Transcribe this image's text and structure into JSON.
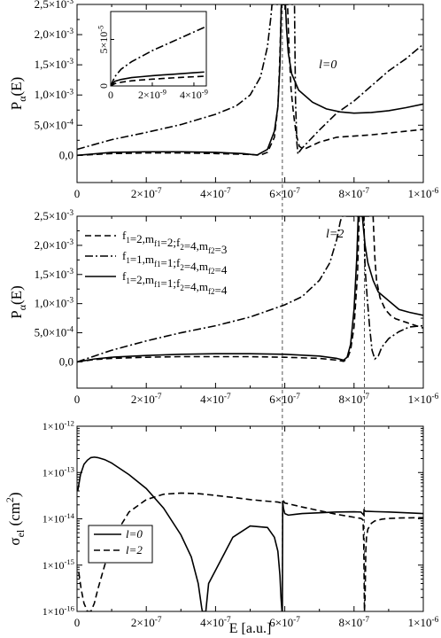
{
  "figure": {
    "xlabel": "E [a.u.]"
  },
  "chart_data": [
    {
      "type": "line",
      "panel": "top",
      "ylabel": "P_α(E)",
      "xlim": [
        0,
        1e-06
      ],
      "ylim": [
        -0.00045,
        0.0025
      ],
      "xtick_labels": [
        "0",
        "2×10⁻⁷",
        "4×10⁻⁷",
        "6×10⁻⁷",
        "8×10⁻⁷",
        "1×10⁻⁶"
      ],
      "ytick_labels": [
        "0,0",
        "5,0×10⁻⁴",
        "1,0×10⁻³",
        "1,5×10⁻³",
        "2,0×10⁻³",
        "2,5×10⁻³"
      ],
      "annotation": "l=0",
      "vlines": [
        5.93e-07
      ],
      "series": [
        {
          "style": "solid",
          "x": [
            0,
            1e-07,
            2e-07,
            3e-07,
            4e-07,
            4.8e-07,
            5.2e-07,
            5.5e-07,
            5.7e-07,
            5.8e-07,
            5.86e-07,
            5.9e-07,
            6.02e-07,
            6.05e-07,
            6.1e-07,
            6.2e-07,
            6.4e-07,
            6.8e-07,
            7.2e-07,
            7.6e-07,
            8e-07,
            8.5e-07,
            9e-07,
            9.5e-07,
            1e-06
          ],
          "y": [
            0,
            5e-05,
            6e-05,
            6e-05,
            5e-05,
            3e-05,
            5e-06,
            0.0001,
            0.0004,
            0.0008,
            0.0015,
            0.0025,
            0.0025,
            0.0021,
            0.0017,
            0.00135,
            0.00108,
            0.00088,
            0.00077,
            0.00072,
            0.0007,
            0.00071,
            0.00074,
            0.00079,
            0.00085
          ]
        },
        {
          "style": "dashed",
          "x": [
            0,
            1e-07,
            2e-07,
            3e-07,
            4e-07,
            5e-07,
            5.3e-07,
            5.5e-07,
            5.7e-07,
            5.8e-07,
            5.85e-07,
            5.9e-07,
            6.08e-07,
            6.12e-07,
            6.18e-07,
            6.25e-07,
            6.33e-07,
            6.42e-07,
            6.55e-07,
            7e-07,
            7.5e-07,
            8e-07,
            8.5e-07,
            9e-07,
            9.5e-07,
            1e-06
          ],
          "y": [
            0,
            3e-05,
            4e-05,
            4e-05,
            3e-05,
            1.5e-05,
            5e-06,
            5e-05,
            0.0003,
            0.0008,
            0.0015,
            0.0025,
            0.0025,
            0.0018,
            0.0011,
            0.0007,
            0.00035,
            0.00015,
            0.0001,
            0.00022,
            0.0003,
            0.00032,
            0.00034,
            0.00037,
            0.0004,
            0.00043
          ]
        },
        {
          "style": "dashdot",
          "x": [
            0,
            5e-08,
            1e-07,
            2e-07,
            3e-07,
            4e-07,
            4.6e-07,
            5e-07,
            5.3e-07,
            5.5e-07,
            5.6e-07,
            5.63e-07,
            6.28e-07,
            6.31e-07,
            6.35e-07,
            6.38e-07,
            6.42e-07,
            6.5e-07,
            7e-07,
            7.5e-07,
            8e-07,
            8.5e-07,
            9e-07,
            9.5e-07,
            1e-06
          ],
          "y": [
            0.0001,
            0.00018,
            0.00026,
            0.00038,
            0.00051,
            0.00068,
            0.00082,
            0.001,
            0.0013,
            0.0018,
            0.0023,
            0.0025,
            0.0025,
            0.0009,
            0.0002,
            2e-05,
            6e-05,
            0.00012,
            0.00042,
            0.0007,
            0.0009,
            0.00115,
            0.0014,
            0.0016,
            0.00184
          ]
        }
      ],
      "inset": {
        "xlim": [
          0,
          4e-09
        ],
        "ylim": [
          0,
          8e-05
        ],
        "xtick_labels": [
          "0",
          "2×10⁻⁹",
          "4×10⁻⁹"
        ],
        "ytick_labels": [
          "0",
          "5×10⁻⁵"
        ],
        "series": [
          {
            "style": "solid",
            "x": [
              0,
              2e-10,
              5e-10,
              1e-09,
              1.5e-09,
              2e-09,
              2.5e-09,
              3e-09,
              3.5e-09,
              4e-09,
              4.5e-09
            ],
            "y": [
              0,
              5e-06,
              7e-06,
              9e-06,
              1e-05,
              1.1e-05,
              1.18e-05,
              1.26e-05,
              1.34e-05,
              1.42e-05,
              1.5e-05
            ]
          },
          {
            "style": "dashed",
            "x": [
              0,
              2e-10,
              5e-10,
              1e-09,
              1.5e-09,
              2e-09,
              2.5e-09,
              3e-09,
              3.5e-09,
              4e-09,
              4.5e-09
            ],
            "y": [
              0,
              2.5e-06,
              4e-06,
              5.5e-06,
              6.5e-06,
              7.3e-06,
              8e-06,
              8.7e-06,
              9.3e-06,
              9.9e-06,
              1.05e-05
            ]
          },
          {
            "style": "dashdot",
            "x": [
              0,
              2e-10,
              5e-10,
              1e-09,
              1.5e-09,
              2e-09,
              2.5e-09,
              3e-09,
              3.5e-09,
              4e-09,
              4.5e-09
            ],
            "y": [
              0,
              1e-05,
              1.8e-05,
              2.6e-05,
              3.2e-05,
              3.8e-05,
              4.3e-05,
              4.8e-05,
              5.3e-05,
              5.8e-05,
              6.3e-05
            ]
          }
        ]
      }
    },
    {
      "type": "line",
      "panel": "middle",
      "ylabel": "P_α(E)",
      "xlim": [
        0,
        1e-06
      ],
      "ylim": [
        -0.00045,
        0.0025
      ],
      "xtick_labels": [
        "0",
        "2×10⁻⁷",
        "4×10⁻⁷",
        "6×10⁻⁷",
        "8×10⁻⁷",
        "1×10⁻⁶"
      ],
      "ytick_labels": [
        "0,0",
        "5,0×10⁻⁴",
        "1,0×10⁻³",
        "1,5×10⁻³",
        "2,0×10⁻³",
        "2,5×10⁻³"
      ],
      "annotation": "l=2",
      "vlines": [
        5.93e-07,
        8.3e-07
      ],
      "legend": [
        {
          "style": "dashed",
          "label_main": "f",
          "parts": [
            [
              "f",
              "1"
            ],
            [
              "=2,m",
              "f1"
            ],
            [
              "=2;f",
              "2"
            ],
            [
              "=4,m",
              "f2"
            ],
            [
              "=3",
              ""
            ]
          ]
        },
        {
          "style": "dashdot",
          "parts": [
            [
              "f",
              "1"
            ],
            [
              "=1,m",
              "f1"
            ],
            [
              "=1;f",
              "2"
            ],
            [
              "=4,m",
              "f2"
            ],
            [
              "=4",
              ""
            ]
          ]
        },
        {
          "style": "solid",
          "parts": [
            [
              "f",
              "1"
            ],
            [
              "=2,m",
              "f1"
            ],
            [
              "=1;f",
              "2"
            ],
            [
              "=4,m",
              "f2"
            ],
            [
              "=4",
              ""
            ]
          ]
        }
      ],
      "series": [
        {
          "style": "solid",
          "x": [
            0,
            5e-08,
            1e-07,
            2e-07,
            3e-07,
            4e-07,
            5e-07,
            6e-07,
            7e-07,
            7.5e-07,
            7.7e-07,
            7.8e-07,
            7.9e-07,
            8e-07,
            8.08e-07,
            8.12e-07,
            8.24e-07,
            8.27e-07,
            8.32e-07,
            8.4e-07,
            8.55e-07,
            8.7e-07,
            9e-07,
            9.3e-07,
            9.6e-07,
            1e-06
          ],
          "y": [
            0,
            5e-05,
            8e-05,
            0.00011,
            0.00013,
            0.00014,
            0.00014,
            0.00013,
            0.0001,
            6e-05,
            3e-05,
            8e-05,
            0.0003,
            0.0009,
            0.0018,
            0.0025,
            0.0025,
            0.0023,
            0.002,
            0.0017,
            0.0014,
            0.0012,
            0.00105,
            0.0009,
            0.00085,
            0.0008
          ]
        },
        {
          "style": "dashed",
          "x": [
            0,
            5e-08,
            1e-07,
            2e-07,
            3e-07,
            4e-07,
            5e-07,
            6e-07,
            7e-07,
            7.5e-07,
            7.7e-07,
            7.8e-07,
            7.9e-07,
            8e-07,
            8.1e-07,
            8.15e-07,
            8.55e-07,
            8.6e-07,
            8.65e-07,
            8.75e-07,
            8.9e-07,
            9.05e-07,
            9.2e-07,
            9.5e-07,
            9.8e-07,
            1e-06
          ],
          "y": [
            0,
            4e-05,
            6e-05,
            8e-05,
            9e-05,
            9e-05,
            9e-05,
            8e-05,
            6e-05,
            3e-05,
            1e-05,
            5e-05,
            0.0002,
            0.0006,
            0.0015,
            0.0025,
            0.0025,
            0.0018,
            0.0014,
            0.0011,
            0.0009,
            0.0008,
            0.00074,
            0.00068,
            0.00062,
            0.00058
          ]
        },
        {
          "style": "dashdot",
          "x": [
            0,
            5e-08,
            1e-07,
            2e-07,
            3e-07,
            4e-07,
            5e-07,
            6e-07,
            6.5e-07,
            7e-07,
            7.3e-07,
            7.5e-07,
            7.6e-07,
            7.65e-07,
            8.28e-07,
            8.32e-07,
            8.38e-07,
            8.45e-07,
            8.52e-07,
            8.6e-07,
            8.7e-07,
            8.8e-07,
            9e-07,
            9.3e-07,
            9.6e-07,
            1e-06
          ],
          "y": [
            0,
            0.0001,
            0.0002,
            0.00036,
            0.0005,
            0.00062,
            0.00077,
            0.00098,
            0.00112,
            0.0014,
            0.0017,
            0.0021,
            0.0024,
            0.0025,
            0.0025,
            0.0016,
            0.0011,
            0.0006,
            0.0002,
            5e-05,
            0.0001,
            0.00025,
            0.0004,
            0.00052,
            0.0006,
            0.00062
          ]
        }
      ]
    },
    {
      "type": "line",
      "panel": "bottom",
      "ylabel": "σ_el (cm²)",
      "xlabel": "E [a.u.]",
      "xlim": [
        0,
        1e-06
      ],
      "yscale": "log",
      "ylim": [
        1e-16,
        1e-12
      ],
      "xtick_labels": [
        "0",
        "2×10⁻⁷",
        "4×10⁻⁷",
        "6×10⁻⁷",
        "8×10⁻⁷",
        "1×10⁻⁶"
      ],
      "ytick_labels": [
        "1×10⁻¹⁶",
        "1×10⁻¹⁵",
        "1×10⁻¹⁴",
        "1×10⁻¹³",
        "1×10⁻¹²"
      ],
      "vlines": [
        5.93e-07,
        8.3e-07
      ],
      "legend": [
        {
          "style": "solid",
          "label": "l=0"
        },
        {
          "style": "dashed",
          "label": "l=2"
        }
      ],
      "series": [
        {
          "name": "l=0",
          "style": "solid",
          "x": [
            2e-09,
            1e-08,
            2e-08,
            3e-08,
            4e-08,
            5e-08,
            6e-08,
            8e-08,
            1e-07,
            1.5e-07,
            2e-07,
            2.5e-07,
            3e-07,
            3.3e-07,
            3.5e-07,
            3.6e-07,
            3.62e-07,
            3.72e-07,
            3.73e-07,
            3.8e-07,
            4.5e-07,
            5e-07,
            5.5e-07,
            5.7e-07,
            5.8e-07,
            5.86e-07,
            5.89e-07,
            5.92e-07,
            5.93e-07,
            5.94e-07,
            5.96e-07,
            6e-07,
            6.1e-07,
            6.3e-07,
            6.5e-07,
            7e-07,
            7.5e-07,
            8e-07,
            8.2e-07,
            8.28e-07,
            8.29e-07,
            8.31e-07,
            8.33e-07,
            8.4e-07,
            8.6e-07,
            9e-07,
            9.5e-07,
            1e-06
          ],
          "y": [
            4e-14,
            9e-14,
            1.5e-13,
            1.85e-13,
            2.1e-13,
            2.15e-13,
            2.1e-13,
            1.9e-13,
            1.6e-13,
            9e-14,
            4.5e-14,
            1.7e-14,
            4.5e-15,
            1.5e-15,
            4e-16,
            1.2e-16,
            1e-16,
            1e-16,
            1.2e-16,
            4e-16,
            4e-15,
            7e-15,
            6.5e-15,
            4e-15,
            2e-15,
            6e-16,
            2e-16,
            1e-16,
            1e-16,
            2.4e-14,
            1.7e-14,
            1.3e-14,
            1.2e-14,
            1.25e-14,
            1.3e-14,
            1.35e-14,
            1.4e-14,
            1.42e-14,
            1.4e-14,
            1.2e-14,
            1.55e-14,
            1.5e-14,
            1.45e-14,
            1.45e-14,
            1.43e-14,
            1.4e-14,
            1.35e-14,
            1.3e-14
          ]
        },
        {
          "name": "l=2",
          "style": "dashed",
          "x": [
            5e-09,
            1.2e-08,
            2e-08,
            3e-08,
            4e-08,
            5e-08,
            6e-08,
            8e-08,
            1e-07,
            1.2e-07,
            1.5e-07,
            2e-07,
            2.5e-07,
            3e-07,
            3.5e-07,
            4e-07,
            4.5e-07,
            5e-07,
            5.5e-07,
            5.8e-07,
            5.9e-07,
            5.95e-07,
            6e-07,
            6.5e-07,
            7e-07,
            7.5e-07,
            8e-07,
            8.2e-07,
            8.26e-07,
            8.28e-07,
            8.3e-07,
            8.32e-07,
            8.34e-07,
            8.36e-07,
            8.4e-07,
            8.5e-07,
            8.6e-07,
            8.8e-07,
            9e-07,
            9.3e-07,
            9.6e-07,
            1e-06
          ],
          "y": [
            7e-16,
            3e-16,
            1.5e-16,
            1e-16,
            1e-16,
            1.5e-16,
            3e-16,
            1e-15,
            2.8e-15,
            6e-15,
            1.4e-14,
            2.6e-14,
            3.4e-14,
            3.6e-14,
            3.5e-14,
            3.2e-14,
            2.9e-14,
            2.6e-14,
            2.4e-14,
            2.3e-14,
            2.2e-14,
            2.5e-14,
            2.2e-14,
            1.8e-14,
            1.5e-14,
            1.25e-14,
            1.08e-14,
            1.02e-14,
            9.5e-15,
            3e-15,
            1e-16,
            2e-16,
            2e-15,
            4e-15,
            6e-15,
            8e-15,
            9e-15,
            9.8e-15,
            1.02e-14,
            1.04e-14,
            1.05e-14,
            1.06e-14
          ]
        }
      ]
    }
  ]
}
